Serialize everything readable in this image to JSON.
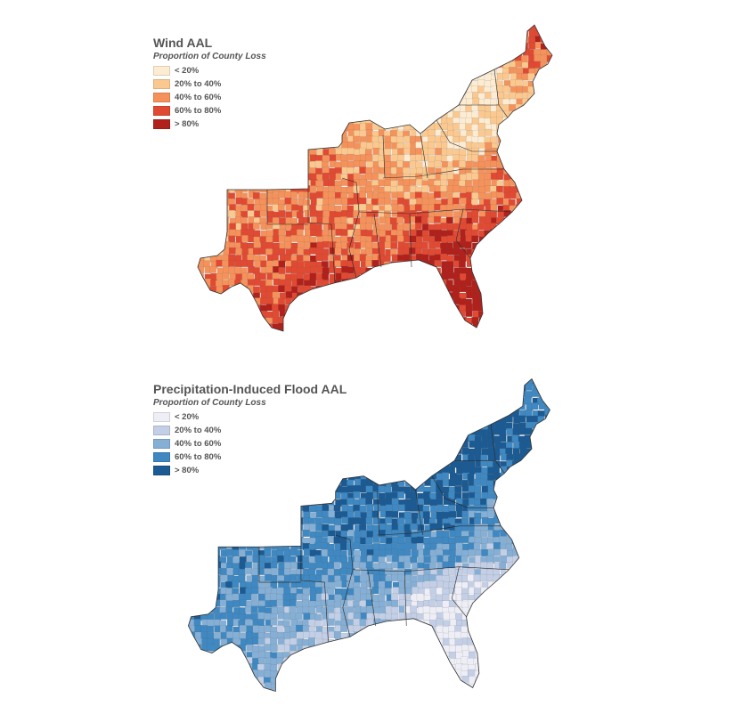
{
  "maps": [
    {
      "id": "wind",
      "title": "Wind AAL",
      "subtitle": "Proportion of County Loss",
      "legend": [
        {
          "label": "< 20%",
          "color": "#fdecd2"
        },
        {
          "label": "20% to 40%",
          "color": "#fbc98f"
        },
        {
          "label": "40% to 60%",
          "color": "#f5925b"
        },
        {
          "label": "60% to 80%",
          "color": "#e14a32"
        },
        {
          "label": "> 80%",
          "color": "#b0211c"
        }
      ],
      "region_levels": [
        {
          "region": "Maine",
          "level": 3
        },
        {
          "region": "New England",
          "level": 2
        },
        {
          "region": "New York / Pennsylvania",
          "level": 0
        },
        {
          "region": "Mid-Atlantic coast",
          "level": 3
        },
        {
          "region": "Ohio Valley",
          "level": 1
        },
        {
          "region": "Appalachian interior",
          "level": 0
        },
        {
          "region": "Missouri / Kansas / Arkansas",
          "level": 2
        },
        {
          "region": "Oklahoma",
          "level": 2
        },
        {
          "region": "Texas panhandle / west",
          "level": 2
        },
        {
          "region": "Central Texas",
          "level": 3
        },
        {
          "region": "Mississippi Delta",
          "level": 1
        },
        {
          "region": "Carolinas / Georgia",
          "level": 4
        },
        {
          "region": "Gulf Coast",
          "level": 4
        },
        {
          "region": "Florida",
          "level": 4
        }
      ]
    },
    {
      "id": "flood",
      "title": "Precipitation-Induced Flood AAL",
      "subtitle": "Proportion of County Loss",
      "legend": [
        {
          "label": "< 20%",
          "color": "#eeeef6"
        },
        {
          "label": "20% to 40%",
          "color": "#c3cfe6"
        },
        {
          "label": "40% to 60%",
          "color": "#86afd5"
        },
        {
          "label": "60% to 80%",
          "color": "#3f88c1"
        },
        {
          "label": "> 80%",
          "color": "#1b5a92"
        }
      ],
      "region_levels": [
        {
          "region": "Maine",
          "level": 3
        },
        {
          "region": "New England",
          "level": 4
        },
        {
          "region": "New York / Pennsylvania",
          "level": 4
        },
        {
          "region": "Mid-Atlantic coast",
          "level": 2
        },
        {
          "region": "Ohio Valley",
          "level": 4
        },
        {
          "region": "Appalachian interior",
          "level": 4
        },
        {
          "region": "Missouri / Kansas / Arkansas",
          "level": 3
        },
        {
          "region": "Oklahoma",
          "level": 3
        },
        {
          "region": "Texas panhandle / west",
          "level": 3
        },
        {
          "region": "Central Texas",
          "level": 2
        },
        {
          "region": "Mississippi Delta",
          "level": 3
        },
        {
          "region": "Carolinas / Georgia",
          "level": 0
        },
        {
          "region": "Gulf Coast",
          "level": 1
        },
        {
          "region": "Florida",
          "level": 0
        }
      ]
    }
  ]
}
